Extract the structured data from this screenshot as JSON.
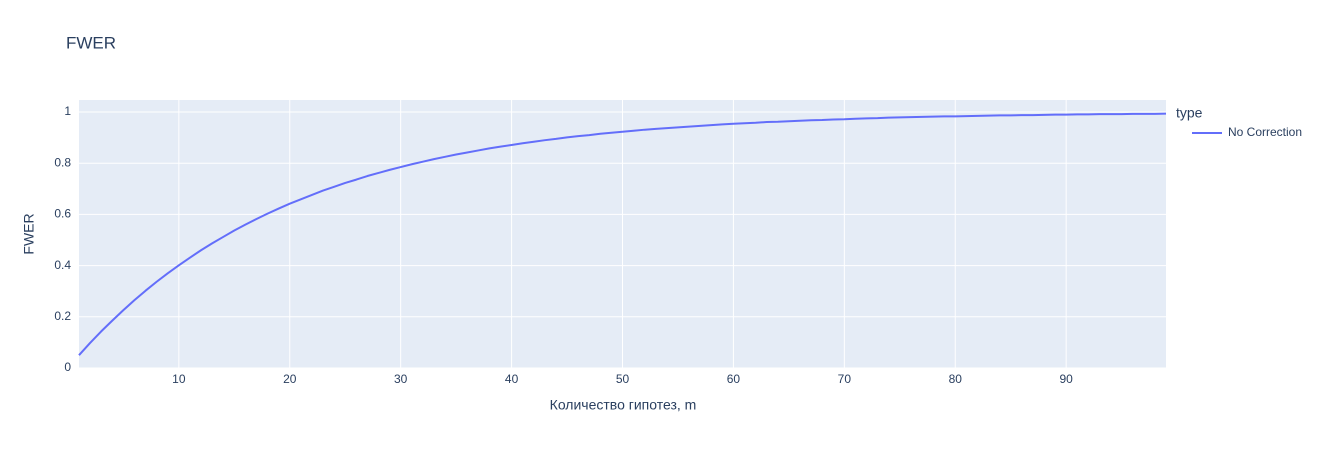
{
  "chart_data": {
    "type": "line",
    "title": "FWER",
    "x_label": "Количество гипотез, m",
    "y_label": "FWER",
    "legend_title": "type",
    "legend_position": "right",
    "x": [
      1,
      2,
      3,
      4,
      5,
      6,
      7,
      8,
      9,
      10,
      11,
      12,
      13,
      14,
      15,
      16,
      17,
      18,
      19,
      20,
      21,
      22,
      23,
      24,
      25,
      26,
      27,
      28,
      29,
      30,
      31,
      32,
      33,
      34,
      35,
      36,
      37,
      38,
      39,
      40,
      41,
      42,
      43,
      44,
      45,
      46,
      47,
      48,
      49,
      50,
      51,
      52,
      53,
      54,
      55,
      56,
      57,
      58,
      59,
      60,
      61,
      62,
      63,
      64,
      65,
      66,
      67,
      68,
      69,
      70,
      71,
      72,
      73,
      74,
      75,
      76,
      77,
      78,
      79,
      80,
      81,
      82,
      83,
      84,
      85,
      86,
      87,
      88,
      89,
      90,
      91,
      92,
      93,
      94,
      95,
      96,
      97,
      98,
      99
    ],
    "series": [
      {
        "name": "No Correction",
        "color": "#636efa",
        "values": [
          0.05,
          0.098,
          0.143,
          0.185,
          0.226,
          0.265,
          0.302,
          0.337,
          0.37,
          0.401,
          0.431,
          0.46,
          0.487,
          0.512,
          0.537,
          0.56,
          0.582,
          0.603,
          0.623,
          0.642,
          0.659,
          0.676,
          0.693,
          0.708,
          0.723,
          0.736,
          0.75,
          0.762,
          0.774,
          0.785,
          0.796,
          0.806,
          0.816,
          0.825,
          0.834,
          0.842,
          0.85,
          0.858,
          0.865,
          0.871,
          0.878,
          0.884,
          0.89,
          0.895,
          0.901,
          0.906,
          0.91,
          0.915,
          0.919,
          0.923,
          0.927,
          0.931,
          0.934,
          0.937,
          0.94,
          0.943,
          0.946,
          0.949,
          0.952,
          0.954,
          0.956,
          0.958,
          0.961,
          0.962,
          0.964,
          0.966,
          0.968,
          0.969,
          0.971,
          0.972,
          0.974,
          0.975,
          0.976,
          0.978,
          0.979,
          0.98,
          0.981,
          0.982,
          0.983,
          0.983,
          0.984,
          0.985,
          0.986,
          0.987,
          0.987,
          0.988,
          0.988,
          0.989,
          0.99,
          0.99,
          0.991,
          0.991,
          0.992,
          0.992,
          0.992,
          0.993,
          0.993,
          0.993,
          0.994
        ]
      }
    ],
    "xlim": [
      1,
      99
    ],
    "ylim": [
      0,
      1.047
    ],
    "xticks": [
      10,
      20,
      30,
      40,
      50,
      60,
      70,
      80,
      90
    ],
    "yticks": [
      0,
      0.2,
      0.4,
      0.6,
      0.8,
      1
    ],
    "grid": true,
    "background": "#e5ecf6"
  }
}
